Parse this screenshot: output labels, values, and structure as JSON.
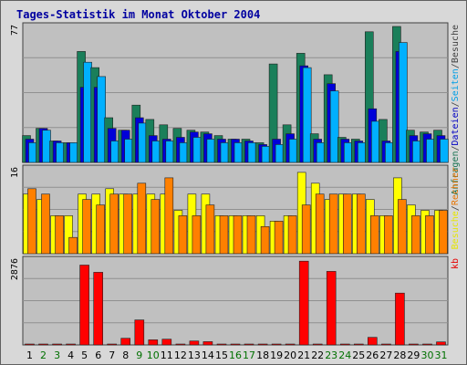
{
  "chart_data": {
    "type": "bar",
    "title": "Tages-Statistik im Monat Oktober 2004",
    "categories": [
      "1",
      "2",
      "3",
      "4",
      "5",
      "6",
      "7",
      "8",
      "9",
      "10",
      "11",
      "12",
      "13",
      "14",
      "15",
      "16",
      "17",
      "18",
      "19",
      "20",
      "21",
      "22",
      "23",
      "24",
      "25",
      "26",
      "27",
      "28",
      "29",
      "30",
      "31"
    ],
    "weekend_days": [
      "2",
      "3",
      "9",
      "10",
      "16",
      "17",
      "23",
      "24",
      "30",
      "31"
    ],
    "panels": [
      {
        "id": "top",
        "ymax_label": "77",
        "ylim": [
          0,
          77
        ],
        "legend": [
          "Anfragen",
          "/",
          "Dateien",
          "/",
          "Seiten",
          "/",
          "Besuche"
        ],
        "series": [
          {
            "name": "Anfragen",
            "color": "#1a7f5a",
            "values": [
              15,
              19,
              12,
              11,
              62,
              53,
              25,
              18,
              32,
              24,
              21,
              19,
              18,
              17,
              15,
              13,
              13,
              11,
              55,
              21,
              61,
              16,
              49,
              14,
              13,
              73,
              24,
              76,
              18,
              17,
              18
            ]
          },
          {
            "name": "Dateien",
            "color": "#0000d8",
            "values": [
              13,
              19,
              12,
              11,
              42,
              42,
              19,
              18,
              25,
              15,
              13,
              14,
              17,
              16,
              13,
              13,
              12,
              10,
              13,
              16,
              54,
              13,
              44,
              13,
              12,
              30,
              12,
              62,
              15,
              16,
              15
            ]
          },
          {
            "name": "Seiten",
            "color": "#00b0ff",
            "values": [
              11,
              18,
              11,
              11,
              56,
              48,
              12,
              13,
              22,
              12,
              12,
              11,
              14,
              13,
              11,
              11,
              11,
              9,
              10,
              13,
              53,
              11,
              40,
              11,
              11,
              23,
              11,
              67,
              12,
              13,
              13
            ]
          }
        ]
      },
      {
        "id": "middle",
        "ymax_label": "16",
        "ylim": [
          0,
          16
        ],
        "legend": [
          "Besuche",
          "/",
          "Rechner"
        ],
        "series": [
          {
            "name": "Besuche",
            "color": "#ffff00",
            "values": [
              11,
              10,
              7,
              7,
              11,
              11,
              12,
              11,
              11,
              11,
              11,
              8,
              11,
              11,
              7,
              7,
              7,
              7,
              6,
              7,
              15,
              13,
              10,
              11,
              11,
              10,
              7,
              14,
              9,
              8,
              8
            ]
          },
          {
            "name": "Rechner",
            "color": "#ff8000",
            "values": [
              12,
              11,
              7,
              3,
              10,
              9,
              11,
              11,
              13,
              10,
              14,
              7,
              7,
              9,
              7,
              7,
              7,
              5,
              6,
              7,
              9,
              11,
              11,
              11,
              11,
              7,
              7,
              10,
              7,
              7,
              8
            ]
          }
        ]
      },
      {
        "id": "bottom",
        "ymax_label": "2876",
        "ylim": [
          0,
          2876
        ],
        "legend": [
          "kb"
        ],
        "series": [
          {
            "name": "kb",
            "color": "#ff0000",
            "values": [
              0,
              0,
              0,
              0,
              2650,
              2410,
              0,
              220,
              830,
              170,
              190,
              0,
              130,
              110,
              0,
              0,
              0,
              0,
              0,
              0,
              2780,
              0,
              2440,
              0,
              0,
              250,
              0,
              1720,
              0,
              0,
              100
            ]
          }
        ]
      }
    ],
    "colors": {
      "background": "#d8d8d8",
      "plot": "#c0c0c0",
      "grid": "#909090",
      "weekend_label": "#007000",
      "weekday_label": "#000000"
    }
  }
}
